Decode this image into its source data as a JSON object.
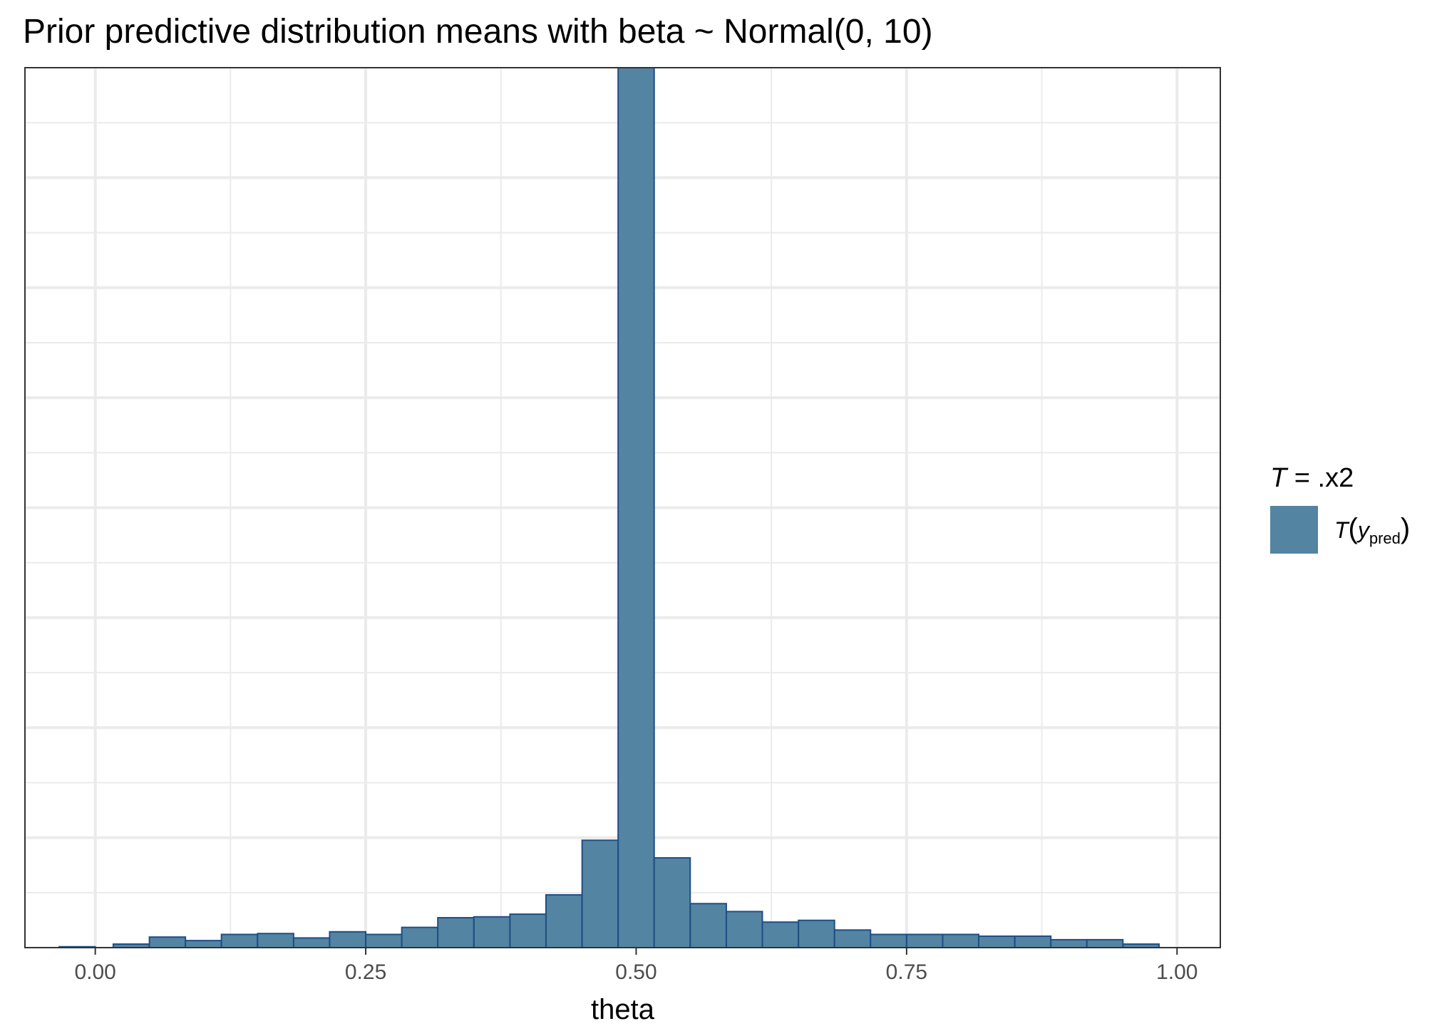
{
  "chart_data": {
    "type": "bar",
    "title": "Prior predictive distribution means with beta ~ Normal(0, 10)",
    "xlabel": "theta",
    "ylabel": "",
    "xlim": [
      -0.065,
      1.04
    ],
    "ylim": [
      0,
      1
    ],
    "x_ticks": [
      "0.00",
      "0.25",
      "0.50",
      "0.75",
      "1.00"
    ],
    "x_tick_values": [
      0,
      0.25,
      0.5,
      0.75,
      1.0
    ],
    "bin_width": 0.0333,
    "bins": [
      {
        "center": -0.0167,
        "value": 0.001
      },
      {
        "center": 0.0333,
        "value": 0.004
      },
      {
        "center": 0.0667,
        "value": 0.012
      },
      {
        "center": 0.1,
        "value": 0.008
      },
      {
        "center": 0.1333,
        "value": 0.015
      },
      {
        "center": 0.1667,
        "value": 0.016
      },
      {
        "center": 0.2,
        "value": 0.011
      },
      {
        "center": 0.2333,
        "value": 0.018
      },
      {
        "center": 0.2667,
        "value": 0.015
      },
      {
        "center": 0.3,
        "value": 0.023
      },
      {
        "center": 0.3333,
        "value": 0.034
      },
      {
        "center": 0.3667,
        "value": 0.035
      },
      {
        "center": 0.4,
        "value": 0.038
      },
      {
        "center": 0.4333,
        "value": 0.06
      },
      {
        "center": 0.4667,
        "value": 0.122
      },
      {
        "center": 0.5,
        "value": 1.0
      },
      {
        "center": 0.5333,
        "value": 0.102
      },
      {
        "center": 0.5667,
        "value": 0.05
      },
      {
        "center": 0.6,
        "value": 0.041
      },
      {
        "center": 0.6333,
        "value": 0.029
      },
      {
        "center": 0.6667,
        "value": 0.031
      },
      {
        "center": 0.7,
        "value": 0.02
      },
      {
        "center": 0.7333,
        "value": 0.015
      },
      {
        "center": 0.7667,
        "value": 0.015
      },
      {
        "center": 0.8,
        "value": 0.015
      },
      {
        "center": 0.8333,
        "value": 0.013
      },
      {
        "center": 0.8667,
        "value": 0.013
      },
      {
        "center": 0.9,
        "value": 0.009
      },
      {
        "center": 0.9333,
        "value": 0.009
      },
      {
        "center": 0.9667,
        "value": 0.004
      }
    ],
    "y_axis_labels_shown": false,
    "grid": true,
    "legend": {
      "title_var": "T",
      "title_rest": " = .x2",
      "label_var_T": "T",
      "label_open": "(",
      "label_var_y": "y",
      "label_sub": "pred",
      "label_close": ")",
      "position": "right"
    },
    "colors": {
      "fill": "#5384a2",
      "edge": "#1f4e86",
      "grid": "#ebebeb",
      "panel_border": "#333333",
      "tick_text": "#4d4d4d"
    }
  }
}
